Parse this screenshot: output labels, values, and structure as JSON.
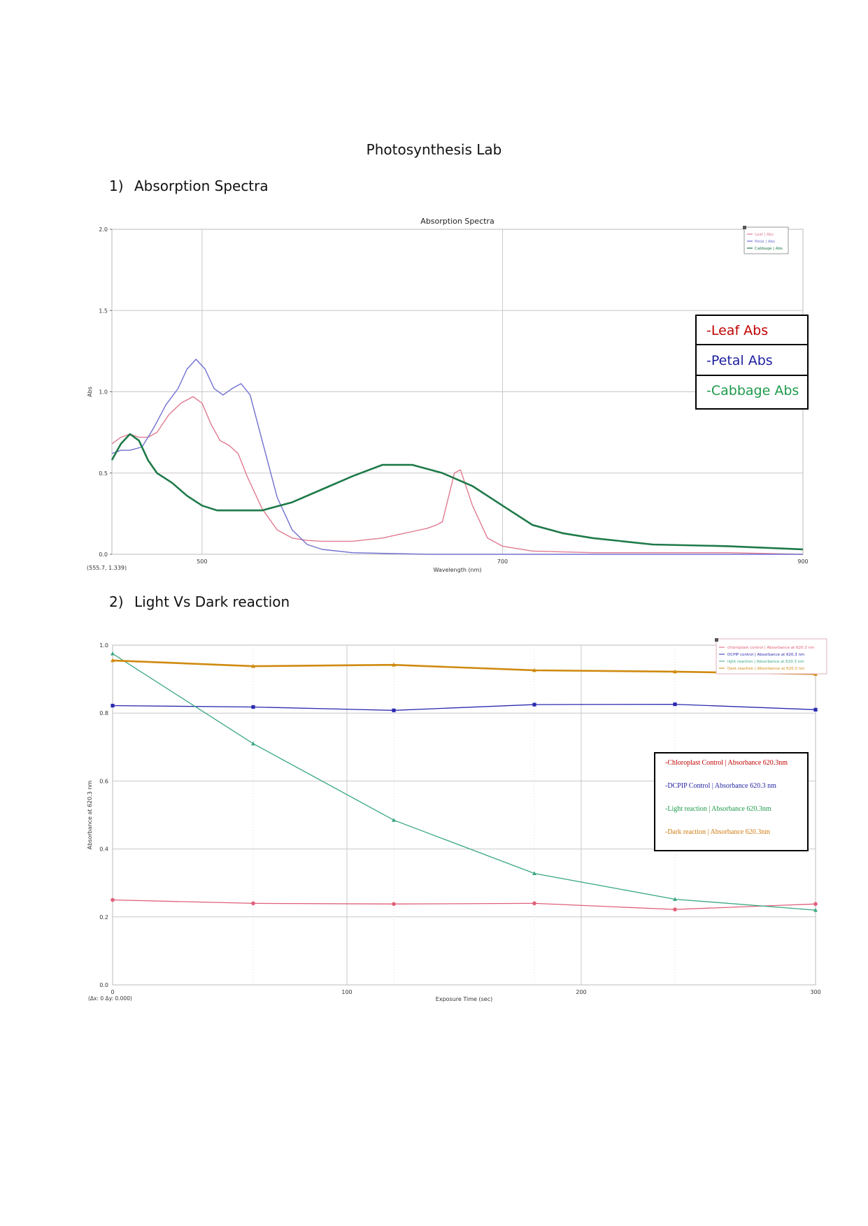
{
  "page": {
    "title": "Photosynthesis Lab",
    "section1": {
      "number": "1)",
      "label": "Absorption Spectra"
    },
    "section2": {
      "number": "2)",
      "label": "Light Vs Dark reaction"
    }
  },
  "chart_data": [
    {
      "type": "line",
      "title": "Absorption Spectra",
      "xlabel": "Wavelength (nm)",
      "ylabel": "Abs",
      "xlim": [
        440,
        900
      ],
      "ylim": [
        0,
        2.0
      ],
      "xticks": [
        500,
        700,
        900
      ],
      "yticks": [
        "0.0",
        "0.5",
        "1.0",
        "1.5",
        "2.0"
      ],
      "coord_readout": "(555.7, 1.339)",
      "grid": true,
      "legend": [
        "Leaf | Abs",
        "Petal | Abs",
        "Cabbage | Abs"
      ],
      "overlay_legend": [
        {
          "label": "-Leaf Abs",
          "color": "#c00000"
        },
        {
          "label": "-Petal Abs",
          "color": "#1f1fa0"
        },
        {
          "label": "-Cabbage Abs",
          "color": "#1e9a4a"
        }
      ],
      "series": [
        {
          "name": "Leaf | Abs",
          "color": "#e07a90",
          "x": [
            440,
            446,
            452,
            458,
            464,
            470,
            478,
            486,
            494,
            500,
            506,
            512,
            518,
            524,
            530,
            540,
            550,
            560,
            570,
            580,
            590,
            600,
            610,
            620,
            630,
            640,
            650,
            656,
            660,
            664,
            668,
            672,
            680,
            690,
            700,
            720,
            760,
            800,
            850,
            900
          ],
          "y": [
            0.68,
            0.72,
            0.74,
            0.72,
            0.72,
            0.75,
            0.86,
            0.93,
            0.97,
            0.93,
            0.8,
            0.7,
            0.67,
            0.62,
            0.48,
            0.28,
            0.15,
            0.1,
            0.085,
            0.08,
            0.08,
            0.08,
            0.09,
            0.1,
            0.12,
            0.14,
            0.16,
            0.18,
            0.2,
            0.35,
            0.5,
            0.52,
            0.3,
            0.1,
            0.05,
            0.02,
            0.01,
            0.01,
            0.01,
            0.0
          ]
        },
        {
          "name": "Petal | Abs",
          "color": "#7070d0",
          "x": [
            440,
            446,
            452,
            460,
            468,
            476,
            484,
            490,
            496,
            502,
            508,
            514,
            520,
            526,
            532,
            540,
            550,
            560,
            570,
            580,
            600,
            650,
            700,
            800,
            900
          ],
          "y": [
            0.62,
            0.64,
            0.64,
            0.66,
            0.78,
            0.92,
            1.02,
            1.14,
            1.2,
            1.14,
            1.02,
            0.98,
            1.02,
            1.05,
            0.98,
            0.7,
            0.35,
            0.15,
            0.06,
            0.03,
            0.01,
            0.0,
            0.0,
            0.0,
            0.0
          ]
        },
        {
          "name": "Cabbage | Abs",
          "color": "#1e7a48",
          "x": [
            440,
            446,
            452,
            458,
            464,
            470,
            480,
            490,
            500,
            510,
            520,
            530,
            540,
            560,
            580,
            600,
            620,
            640,
            660,
            680,
            700,
            720,
            740,
            760,
            800,
            850,
            900
          ],
          "y": [
            0.58,
            0.68,
            0.74,
            0.7,
            0.58,
            0.5,
            0.44,
            0.36,
            0.3,
            0.27,
            0.27,
            0.27,
            0.27,
            0.32,
            0.4,
            0.48,
            0.55,
            0.55,
            0.5,
            0.42,
            0.3,
            0.18,
            0.13,
            0.1,
            0.06,
            0.05,
            0.03
          ]
        }
      ]
    },
    {
      "type": "line",
      "title": "",
      "xlabel": "Exposure Time (sec)",
      "ylabel": "Absorbance at 620.3 nm",
      "xlim": [
        0,
        300
      ],
      "ylim": [
        0,
        1.0
      ],
      "xticks": [
        0,
        100,
        200,
        300
      ],
      "yticks": [
        "0.0",
        "0.2",
        "0.4",
        "0.6",
        "0.8",
        "1.0"
      ],
      "coord_readout": "(Δx: 0 Δy: 0.000)",
      "grid": true,
      "legend": [
        "chloroplast control | Absorbance at 620.3 nm",
        "DCPIP control | Absorbance at 620.3 nm",
        "light reaction | Absorbance at 620.3 nm",
        "Dark reaction | Absorbance at 620.3 nm"
      ],
      "overlay_legend": [
        {
          "label": "-Chloroplast Control | Absorbance 620.3nm",
          "color": "#c00000"
        },
        {
          "label": "-DCPIP Control | Absorbance 620.3 nm",
          "color": "#1f1fa0"
        },
        {
          "label": "-Light reaction | Absorbance 620.3nm",
          "color": "#1e9a4a"
        },
        {
          "label": "-Dark reaction | Absorbance 620.3nm",
          "color": "#d07a10"
        }
      ],
      "x": [
        0,
        60,
        120,
        180,
        240,
        300
      ],
      "series": [
        {
          "name": "chloroplast control | Absorbance at 620.3 nm",
          "color": "#e0607a",
          "marker": "circle",
          "values": [
            0.25,
            0.24,
            0.238,
            0.24,
            0.222,
            0.238
          ]
        },
        {
          "name": "DCPIP control | Absorbance at 620.3 nm",
          "color": "#2a2ab0",
          "marker": "square",
          "values": [
            0.822,
            0.818,
            0.808,
            0.825,
            0.826,
            0.81
          ]
        },
        {
          "name": "light reaction | Absorbance at 620.3 nm",
          "color": "#3aa880",
          "marker": "triangle",
          "values": [
            0.975,
            0.71,
            0.485,
            0.328,
            0.252,
            0.22
          ]
        },
        {
          "name": "Dark reaction | Absorbance at 620.3 nm",
          "color": "#d08a10",
          "marker": "triangle",
          "values": [
            0.955,
            0.938,
            0.942,
            0.926,
            0.922,
            0.915
          ]
        }
      ]
    }
  ]
}
